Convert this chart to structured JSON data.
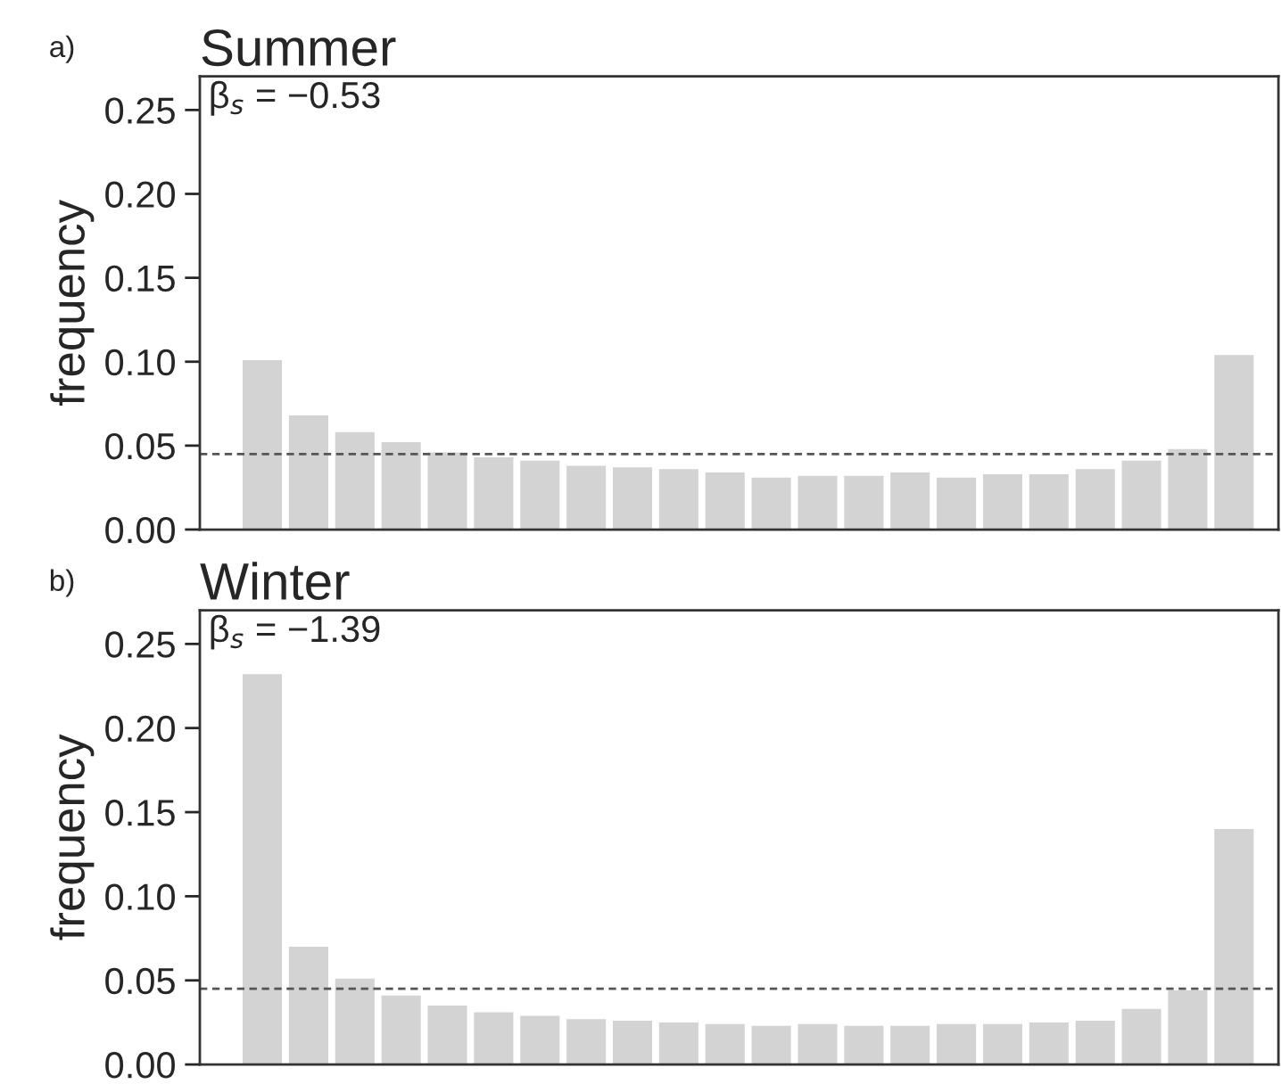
{
  "chart_data": [
    {
      "type": "bar",
      "title": "Summer",
      "ylabel": "frequency",
      "annotations": [
        "a)",
        "β$_{s}$ = −0.53"
      ],
      "categories": [
        null,
        null,
        null,
        null,
        null,
        null,
        null,
        null,
        null,
        null,
        null,
        null,
        null,
        null,
        null,
        null,
        null,
        null,
        null,
        null,
        null,
        null
      ],
      "values": [
        0.101,
        0.068,
        0.058,
        0.052,
        0.046,
        0.043,
        0.041,
        0.038,
        0.037,
        0.036,
        0.034,
        0.031,
        0.032,
        0.032,
        0.034,
        0.031,
        0.033,
        0.033,
        0.036,
        0.041,
        0.048,
        0.104
      ],
      "color": "#d3d3d3",
      "ylim": [
        0,
        0.27
      ],
      "yticks": [
        {
          "value": 0,
          "label": "0.00"
        },
        {
          "value": 0.05,
          "label": "0.05"
        },
        {
          "value": 0.1,
          "label": "0.10"
        },
        {
          "value": 0.15,
          "label": "0.15"
        },
        {
          "value": 0.2,
          "label": "0.20"
        },
        {
          "value": 0.25,
          "label": "0.25"
        }
      ],
      "ref_lines": [
        {
          "axis": "y",
          "value": 0.045,
          "color": "#555555",
          "line_style": "dashed"
        }
      ],
      "tick_labels": "y",
      "grid": false,
      "legend": false
    },
    {
      "type": "bar",
      "title": "Winter",
      "ylabel": "frequency",
      "annotations": [
        "b)",
        "β$_{s}$ = −1.39"
      ],
      "categories": [
        null,
        null,
        null,
        null,
        null,
        null,
        null,
        null,
        null,
        null,
        null,
        null,
        null,
        null,
        null,
        null,
        null,
        null,
        null,
        null,
        null,
        null
      ],
      "values": [
        0.232,
        0.07,
        0.051,
        0.041,
        0.035,
        0.031,
        0.029,
        0.027,
        0.026,
        0.025,
        0.024,
        0.023,
        0.024,
        0.023,
        0.023,
        0.024,
        0.024,
        0.025,
        0.026,
        0.033,
        0.044,
        0.14
      ],
      "color": "#d3d3d3",
      "ylim": [
        0,
        0.27
      ],
      "yticks": [
        {
          "value": 0,
          "label": "0.00"
        },
        {
          "value": 0.05,
          "label": "0.05"
        },
        {
          "value": 0.1,
          "label": "0.10"
        },
        {
          "value": 0.15,
          "label": "0.15"
        },
        {
          "value": 0.2,
          "label": "0.20"
        },
        {
          "value": 0.25,
          "label": "0.25"
        }
      ],
      "ref_lines": [
        {
          "axis": "y",
          "value": 0.045,
          "color": "#555555",
          "line_style": "dashed"
        }
      ],
      "tick_labels": "y",
      "grid": false,
      "legend": false
    }
  ]
}
